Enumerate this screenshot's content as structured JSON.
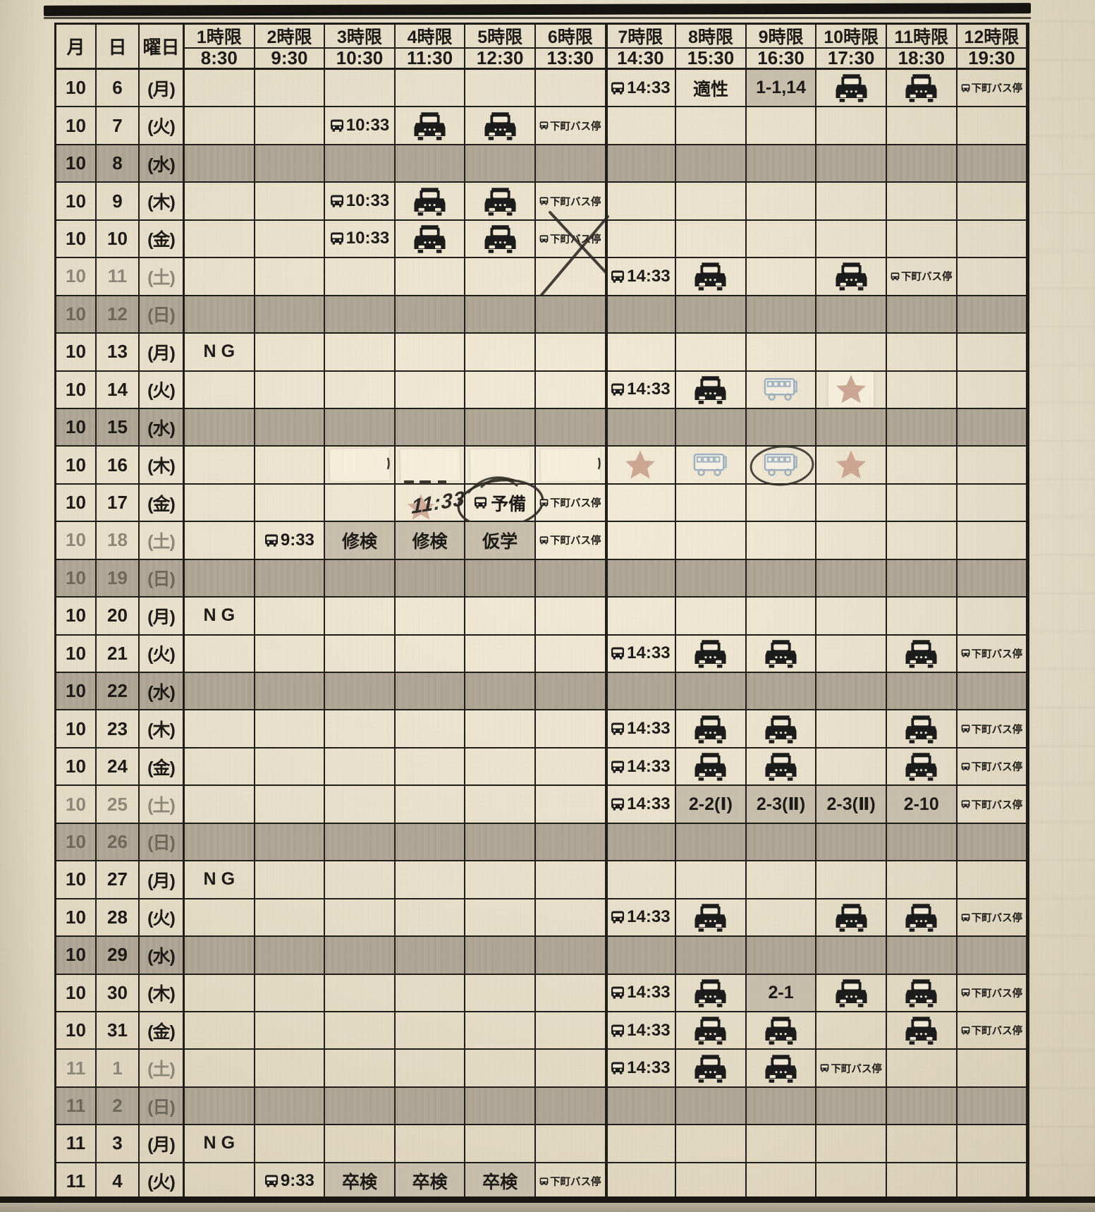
{
  "document_type": "driving-school-schedule-sheet",
  "labels": {
    "month": "月",
    "day": "日",
    "weekday": "曜日",
    "bus_stop": "下町バス停"
  },
  "header": {
    "periods": [
      {
        "name": "1時限",
        "time": "8:30"
      },
      {
        "name": "2時限",
        "time": "9:30"
      },
      {
        "name": "3時限",
        "time": "10:30"
      },
      {
        "name": "4時限",
        "time": "11:30"
      },
      {
        "name": "5時限",
        "time": "12:30"
      },
      {
        "name": "6時限",
        "time": "13:30"
      },
      {
        "name": "7時限",
        "time": "14:30"
      },
      {
        "name": "8時限",
        "time": "15:30"
      },
      {
        "name": "9時限",
        "time": "16:30"
      },
      {
        "name": "10時限",
        "time": "17:30"
      },
      {
        "name": "11時限",
        "time": "18:30"
      },
      {
        "name": "12時限",
        "time": "19:30"
      }
    ]
  },
  "icons": {
    "bus": "bus-icon",
    "car": "car-icon",
    "shuttle_bus": "shuttle-bus-icon",
    "star": "star-icon",
    "bus_stop": "bus-stop-icon"
  },
  "colors": {
    "paper": "#ede4cd",
    "grid_line": "#1f1d1a",
    "shaded_row": "#b1a897",
    "cell_highlight": "#c7beac",
    "saturday_text": "#8d8779",
    "sunday_text": "#6e685a",
    "ink": "#1c1a17",
    "whiteout": "#f5eeda",
    "star": "#c89e8c",
    "shuttle_bus": "#8ba3bd"
  },
  "rows": [
    {
      "month": "10",
      "day": "6",
      "weekday": "(月)",
      "shaded": false,
      "cells": [
        {
          "period": 7,
          "kind": "bus_time",
          "time": "14:33"
        },
        {
          "period": 8,
          "kind": "text",
          "text": "適性"
        },
        {
          "period": 9,
          "kind": "text",
          "text": "1-1,14",
          "highlight": true
        },
        {
          "period": 10,
          "kind": "car"
        },
        {
          "period": 11,
          "kind": "car"
        },
        {
          "period": 12,
          "kind": "busstop"
        }
      ]
    },
    {
      "month": "10",
      "day": "7",
      "weekday": "(火)",
      "shaded": false,
      "cells": [
        {
          "period": 3,
          "kind": "bus_time",
          "time": "10:33"
        },
        {
          "period": 4,
          "kind": "car"
        },
        {
          "period": 5,
          "kind": "car"
        },
        {
          "period": 6,
          "kind": "busstop"
        }
      ]
    },
    {
      "month": "10",
      "day": "8",
      "weekday": "(水)",
      "shaded": true,
      "cells": []
    },
    {
      "month": "10",
      "day": "9",
      "weekday": "(木)",
      "shaded": false,
      "cells": [
        {
          "period": 3,
          "kind": "bus_time",
          "time": "10:33"
        },
        {
          "period": 4,
          "kind": "car"
        },
        {
          "period": 5,
          "kind": "car"
        },
        {
          "period": 6,
          "kind": "busstop"
        }
      ]
    },
    {
      "month": "10",
      "day": "10",
      "weekday": "(金)",
      "shaded": false,
      "cells": [
        {
          "period": 3,
          "kind": "bus_time",
          "time": "10:33"
        },
        {
          "period": 4,
          "kind": "car"
        },
        {
          "period": 5,
          "kind": "car"
        },
        {
          "period": 6,
          "kind": "busstop",
          "crossed": true
        }
      ]
    },
    {
      "month": "10",
      "day": "11",
      "weekday": "(土)",
      "shaded": false,
      "day_style": "sat",
      "cells": [
        {
          "period": 7,
          "kind": "bus_time",
          "time": "14:33"
        },
        {
          "period": 8,
          "kind": "car"
        },
        {
          "period": 10,
          "kind": "car"
        },
        {
          "period": 11,
          "kind": "busstop"
        }
      ]
    },
    {
      "month": "10",
      "day": "12",
      "weekday": "(日)",
      "shaded": true,
      "day_style": "sun",
      "cells": []
    },
    {
      "month": "10",
      "day": "13",
      "weekday": "(月)",
      "shaded": false,
      "cells": [
        {
          "period": 1,
          "kind": "ng",
          "text": "NG"
        }
      ]
    },
    {
      "month": "10",
      "day": "14",
      "weekday": "(火)",
      "shaded": false,
      "cells": [
        {
          "period": 7,
          "kind": "bus_time",
          "time": "14:33"
        },
        {
          "period": 8,
          "kind": "car"
        },
        {
          "period": 9,
          "kind": "shuttle"
        },
        {
          "period": 10,
          "kind": "star",
          "patch": true
        }
      ]
    },
    {
      "month": "10",
      "day": "15",
      "weekday": "(水)",
      "shaded": true,
      "cells": []
    },
    {
      "month": "10",
      "day": "16",
      "weekday": "(木)",
      "shaded": false,
      "cells": [
        {
          "period": 3,
          "kind": "whiteout",
          "variant": "tick"
        },
        {
          "period": 4,
          "kind": "whiteout",
          "variant": "marks"
        },
        {
          "period": 5,
          "kind": "whiteout",
          "variant": "arc"
        },
        {
          "period": 6,
          "kind": "whiteout",
          "variant": "tick"
        },
        {
          "period": 7,
          "kind": "star"
        },
        {
          "period": 8,
          "kind": "shuttle"
        },
        {
          "period": 9,
          "kind": "shuttle",
          "circled": true
        },
        {
          "period": 10,
          "kind": "star"
        }
      ]
    },
    {
      "month": "10",
      "day": "17",
      "weekday": "(金)",
      "shaded": false,
      "cells": [
        {
          "period": 4,
          "kind": "hand_time",
          "text": "11:33"
        },
        {
          "period": 5,
          "kind": "reserve",
          "text": "予備"
        },
        {
          "period": 6,
          "kind": "busstop"
        }
      ]
    },
    {
      "month": "10",
      "day": "18",
      "weekday": "(土)",
      "shaded": false,
      "day_style": "sat",
      "cells": [
        {
          "period": 2,
          "kind": "bus_time",
          "time": "9:33"
        },
        {
          "period": 3,
          "kind": "text",
          "text": "修検",
          "highlight": true
        },
        {
          "period": 4,
          "kind": "text",
          "text": "修検",
          "highlight": true
        },
        {
          "period": 5,
          "kind": "text",
          "text": "仮学",
          "highlight": true
        },
        {
          "period": 6,
          "kind": "busstop"
        }
      ]
    },
    {
      "month": "10",
      "day": "19",
      "weekday": "(日)",
      "shaded": true,
      "day_style": "sun",
      "cells": []
    },
    {
      "month": "10",
      "day": "20",
      "weekday": "(月)",
      "shaded": false,
      "cells": [
        {
          "period": 1,
          "kind": "ng",
          "text": "NG"
        }
      ]
    },
    {
      "month": "10",
      "day": "21",
      "weekday": "(火)",
      "shaded": false,
      "cells": [
        {
          "period": 7,
          "kind": "bus_time",
          "time": "14:33"
        },
        {
          "period": 8,
          "kind": "car"
        },
        {
          "period": 9,
          "kind": "car"
        },
        {
          "period": 11,
          "kind": "car"
        },
        {
          "period": 12,
          "kind": "busstop"
        }
      ]
    },
    {
      "month": "10",
      "day": "22",
      "weekday": "(水)",
      "shaded": true,
      "cells": []
    },
    {
      "month": "10",
      "day": "23",
      "weekday": "(木)",
      "shaded": false,
      "cells": [
        {
          "period": 7,
          "kind": "bus_time",
          "time": "14:33"
        },
        {
          "period": 8,
          "kind": "car"
        },
        {
          "period": 9,
          "kind": "car"
        },
        {
          "period": 11,
          "kind": "car"
        },
        {
          "period": 12,
          "kind": "busstop"
        }
      ]
    },
    {
      "month": "10",
      "day": "24",
      "weekday": "(金)",
      "shaded": false,
      "cells": [
        {
          "period": 7,
          "kind": "bus_time",
          "time": "14:33"
        },
        {
          "period": 8,
          "kind": "car"
        },
        {
          "period": 9,
          "kind": "car"
        },
        {
          "period": 11,
          "kind": "car"
        },
        {
          "period": 12,
          "kind": "busstop"
        }
      ]
    },
    {
      "month": "10",
      "day": "25",
      "weekday": "(土)",
      "shaded": false,
      "day_style": "sat",
      "cells": [
        {
          "period": 7,
          "kind": "bus_time",
          "time": "14:33"
        },
        {
          "period": 8,
          "kind": "text",
          "text": "2-2(Ⅰ)",
          "highlight": true
        },
        {
          "period": 9,
          "kind": "text",
          "text": "2-3(Ⅱ)",
          "highlight": true
        },
        {
          "period": 10,
          "kind": "text",
          "text": "2-3(Ⅱ)",
          "highlight": true
        },
        {
          "period": 11,
          "kind": "text",
          "text": "2-10",
          "highlight": true
        },
        {
          "period": 12,
          "kind": "busstop"
        }
      ]
    },
    {
      "month": "10",
      "day": "26",
      "weekday": "(日)",
      "shaded": true,
      "day_style": "sun",
      "cells": []
    },
    {
      "month": "10",
      "day": "27",
      "weekday": "(月)",
      "shaded": false,
      "cells": [
        {
          "period": 1,
          "kind": "ng",
          "text": "NG"
        }
      ]
    },
    {
      "month": "10",
      "day": "28",
      "weekday": "(火)",
      "shaded": false,
      "cells": [
        {
          "period": 7,
          "kind": "bus_time",
          "time": "14:33"
        },
        {
          "period": 8,
          "kind": "car"
        },
        {
          "period": 10,
          "kind": "car"
        },
        {
          "period": 11,
          "kind": "car"
        },
        {
          "period": 12,
          "kind": "busstop"
        }
      ]
    },
    {
      "month": "10",
      "day": "29",
      "weekday": "(水)",
      "shaded": true,
      "cells": []
    },
    {
      "month": "10",
      "day": "30",
      "weekday": "(木)",
      "shaded": false,
      "cells": [
        {
          "period": 7,
          "kind": "bus_time",
          "time": "14:33"
        },
        {
          "period": 8,
          "kind": "car"
        },
        {
          "period": 9,
          "kind": "text",
          "text": "2-1",
          "highlight": true
        },
        {
          "period": 10,
          "kind": "car"
        },
        {
          "period": 11,
          "kind": "car"
        },
        {
          "period": 12,
          "kind": "busstop"
        }
      ]
    },
    {
      "month": "10",
      "day": "31",
      "weekday": "(金)",
      "shaded": false,
      "cells": [
        {
          "period": 7,
          "kind": "bus_time",
          "time": "14:33"
        },
        {
          "period": 8,
          "kind": "car"
        },
        {
          "period": 9,
          "kind": "car"
        },
        {
          "period": 11,
          "kind": "car"
        },
        {
          "period": 12,
          "kind": "busstop"
        }
      ]
    },
    {
      "month": "11",
      "day": "1",
      "weekday": "(土)",
      "shaded": false,
      "day_style": "sat",
      "cells": [
        {
          "period": 7,
          "kind": "bus_time",
          "time": "14:33"
        },
        {
          "period": 8,
          "kind": "car"
        },
        {
          "period": 9,
          "kind": "car"
        },
        {
          "period": 10,
          "kind": "busstop"
        }
      ]
    },
    {
      "month": "11",
      "day": "2",
      "weekday": "(日)",
      "shaded": true,
      "day_style": "sun",
      "cells": []
    },
    {
      "month": "11",
      "day": "3",
      "weekday": "(月)",
      "shaded": false,
      "cells": [
        {
          "period": 1,
          "kind": "ng",
          "text": "NG"
        }
      ]
    },
    {
      "month": "11",
      "day": "4",
      "weekday": "(火)",
      "shaded": false,
      "cells": [
        {
          "period": 2,
          "kind": "bus_time",
          "time": "9:33"
        },
        {
          "period": 3,
          "kind": "text",
          "text": "卒検",
          "highlight": true
        },
        {
          "period": 4,
          "kind": "text",
          "text": "卒検",
          "highlight": true
        },
        {
          "period": 5,
          "kind": "text",
          "text": "卒検",
          "highlight": true
        },
        {
          "period": 6,
          "kind": "busstop"
        }
      ]
    }
  ]
}
